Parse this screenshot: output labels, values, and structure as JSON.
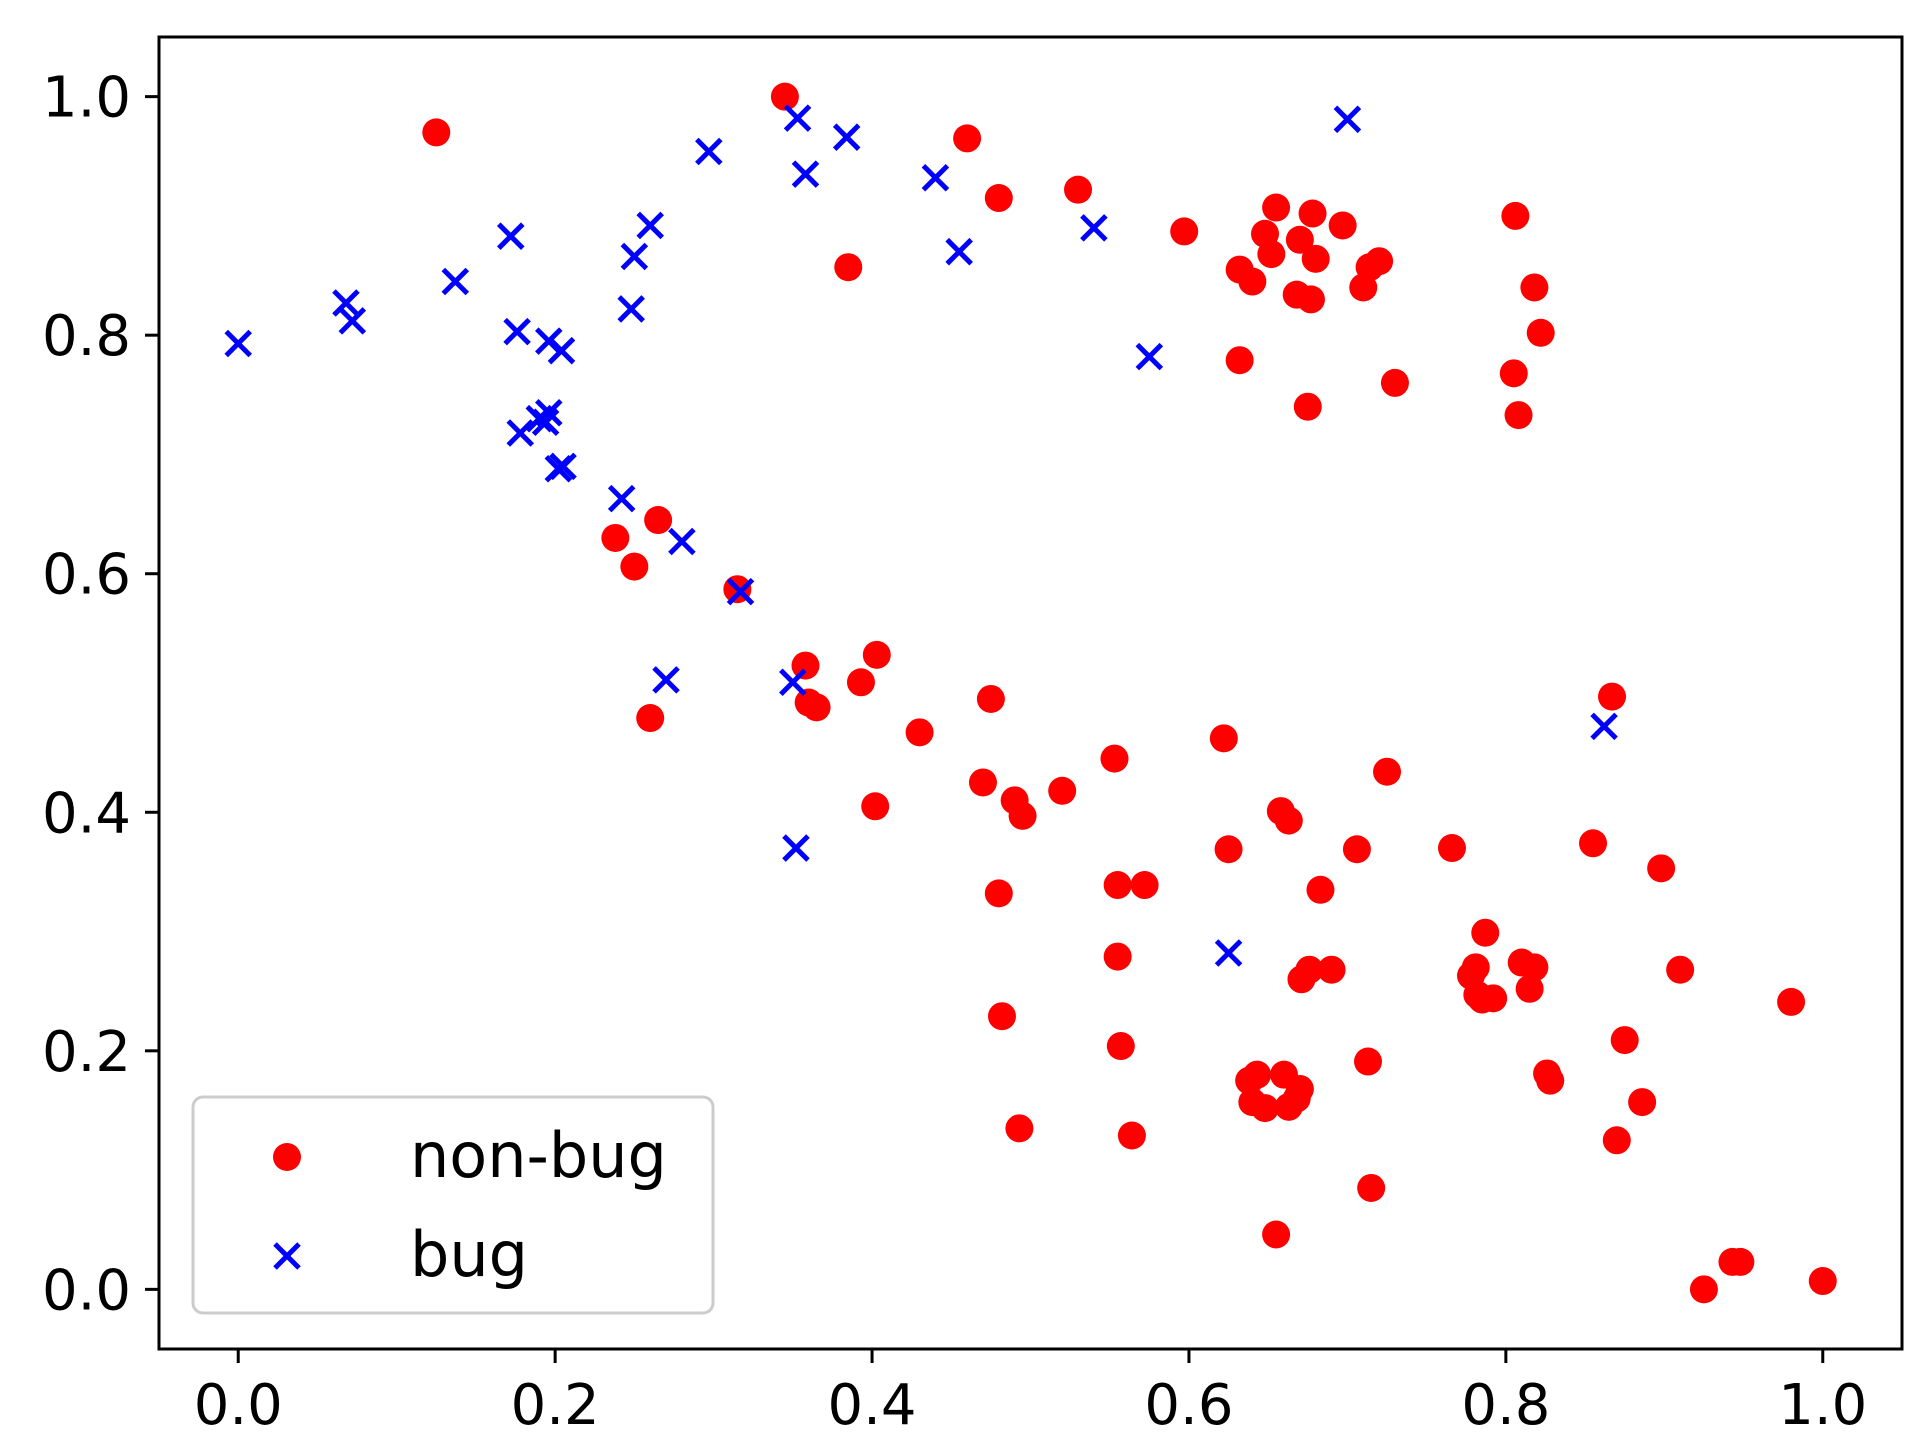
{
  "chart_data": {
    "type": "scatter",
    "title": "",
    "xlabel": "",
    "ylabel": "",
    "xlim": [
      -0.05,
      1.05
    ],
    "ylim": [
      -0.05,
      1.05
    ],
    "xticks": [
      0.0,
      0.2,
      0.4,
      0.6,
      0.8,
      1.0
    ],
    "yticks": [
      0.0,
      0.2,
      0.4,
      0.6,
      0.8,
      1.0
    ],
    "xtick_labels": [
      "0.0",
      "0.2",
      "0.4",
      "0.6",
      "0.8",
      "1.0"
    ],
    "ytick_labels": [
      "0.0",
      "0.2",
      "0.4",
      "0.6",
      "0.8",
      "1.0"
    ],
    "grid": false,
    "legend": {
      "position": "lower-left"
    },
    "series": [
      {
        "name": "non-bug",
        "marker": "circle",
        "color": "#ff0000",
        "points": [
          [
            0.125,
            0.97
          ],
          [
            0.345,
            1.0
          ],
          [
            0.46,
            0.965
          ],
          [
            0.48,
            0.915
          ],
          [
            0.53,
            0.922
          ],
          [
            0.385,
            0.857
          ],
          [
            0.597,
            0.887
          ],
          [
            0.632,
            0.779
          ],
          [
            0.632,
            0.855
          ],
          [
            0.64,
            0.845
          ],
          [
            0.648,
            0.885
          ],
          [
            0.652,
            0.868
          ],
          [
            0.655,
            0.907
          ],
          [
            0.668,
            0.834
          ],
          [
            0.67,
            0.88
          ],
          [
            0.675,
            0.74
          ],
          [
            0.677,
            0.83
          ],
          [
            0.678,
            0.902
          ],
          [
            0.68,
            0.864
          ],
          [
            0.697,
            0.892
          ],
          [
            0.71,
            0.84
          ],
          [
            0.714,
            0.857
          ],
          [
            0.72,
            0.862
          ],
          [
            0.73,
            0.76
          ],
          [
            0.806,
            0.9
          ],
          [
            0.805,
            0.768
          ],
          [
            0.808,
            0.733
          ],
          [
            0.818,
            0.84
          ],
          [
            0.822,
            0.802
          ],
          [
            0.238,
            0.63
          ],
          [
            0.25,
            0.606
          ],
          [
            0.265,
            0.645
          ],
          [
            0.26,
            0.479
          ],
          [
            0.315,
            0.587
          ],
          [
            0.358,
            0.523
          ],
          [
            0.36,
            0.492
          ],
          [
            0.365,
            0.488
          ],
          [
            0.393,
            0.509
          ],
          [
            0.403,
            0.532
          ],
          [
            0.402,
            0.405
          ],
          [
            0.43,
            0.467
          ],
          [
            0.47,
            0.425
          ],
          [
            0.475,
            0.495
          ],
          [
            0.48,
            0.332
          ],
          [
            0.49,
            0.41
          ],
          [
            0.495,
            0.397
          ],
          [
            0.482,
            0.229
          ],
          [
            0.493,
            0.135
          ],
          [
            0.52,
            0.418
          ],
          [
            0.553,
            0.445
          ],
          [
            0.555,
            0.339
          ],
          [
            0.555,
            0.279
          ],
          [
            0.557,
            0.204
          ],
          [
            0.564,
            0.129
          ],
          [
            0.572,
            0.339
          ],
          [
            0.622,
            0.462
          ],
          [
            0.625,
            0.369
          ],
          [
            0.658,
            0.401
          ],
          [
            0.663,
            0.393
          ],
          [
            0.683,
            0.335
          ],
          [
            0.706,
            0.369
          ],
          [
            0.725,
            0.434
          ],
          [
            0.638,
            0.175
          ],
          [
            0.64,
            0.157
          ],
          [
            0.643,
            0.18
          ],
          [
            0.648,
            0.152
          ],
          [
            0.655,
            0.046
          ],
          [
            0.66,
            0.18
          ],
          [
            0.663,
            0.153
          ],
          [
            0.668,
            0.16
          ],
          [
            0.67,
            0.168
          ],
          [
            0.671,
            0.26
          ],
          [
            0.676,
            0.268
          ],
          [
            0.69,
            0.268
          ],
          [
            0.713,
            0.191
          ],
          [
            0.715,
            0.085
          ],
          [
            0.766,
            0.37
          ],
          [
            0.778,
            0.263
          ],
          [
            0.781,
            0.27
          ],
          [
            0.782,
            0.247
          ],
          [
            0.785,
            0.243
          ],
          [
            0.787,
            0.299
          ],
          [
            0.792,
            0.244
          ],
          [
            0.81,
            0.274
          ],
          [
            0.815,
            0.252
          ],
          [
            0.818,
            0.27
          ],
          [
            0.826,
            0.181
          ],
          [
            0.828,
            0.175
          ],
          [
            0.855,
            0.374
          ],
          [
            0.867,
            0.497
          ],
          [
            0.87,
            0.125
          ],
          [
            0.875,
            0.209
          ],
          [
            0.886,
            0.157
          ],
          [
            0.898,
            0.353
          ],
          [
            0.91,
            0.268
          ],
          [
            0.925,
            0.0
          ],
          [
            0.943,
            0.023
          ],
          [
            0.948,
            0.023
          ],
          [
            0.98,
            0.241
          ],
          [
            1.0,
            0.007
          ]
        ]
      },
      {
        "name": "bug",
        "marker": "x",
        "color": "#0000ff",
        "points": [
          [
            0.0,
            0.793
          ],
          [
            0.068,
            0.827
          ],
          [
            0.072,
            0.812
          ],
          [
            0.137,
            0.845
          ],
          [
            0.172,
            0.883
          ],
          [
            0.176,
            0.803
          ],
          [
            0.178,
            0.718
          ],
          [
            0.19,
            0.73
          ],
          [
            0.194,
            0.727
          ],
          [
            0.196,
            0.735
          ],
          [
            0.196,
            0.795
          ],
          [
            0.202,
            0.688
          ],
          [
            0.204,
            0.787
          ],
          [
            0.205,
            0.69
          ],
          [
            0.242,
            0.663
          ],
          [
            0.248,
            0.822
          ],
          [
            0.25,
            0.866
          ],
          [
            0.26,
            0.892
          ],
          [
            0.27,
            0.511
          ],
          [
            0.28,
            0.627
          ],
          [
            0.297,
            0.954
          ],
          [
            0.317,
            0.585
          ],
          [
            0.35,
            0.509
          ],
          [
            0.352,
            0.37
          ],
          [
            0.353,
            0.982
          ],
          [
            0.358,
            0.935
          ],
          [
            0.384,
            0.966
          ],
          [
            0.44,
            0.932
          ],
          [
            0.455,
            0.87
          ],
          [
            0.54,
            0.89
          ],
          [
            0.575,
            0.782
          ],
          [
            0.625,
            0.282
          ],
          [
            0.7,
            0.981
          ],
          [
            0.862,
            0.472
          ]
        ]
      }
    ]
  }
}
